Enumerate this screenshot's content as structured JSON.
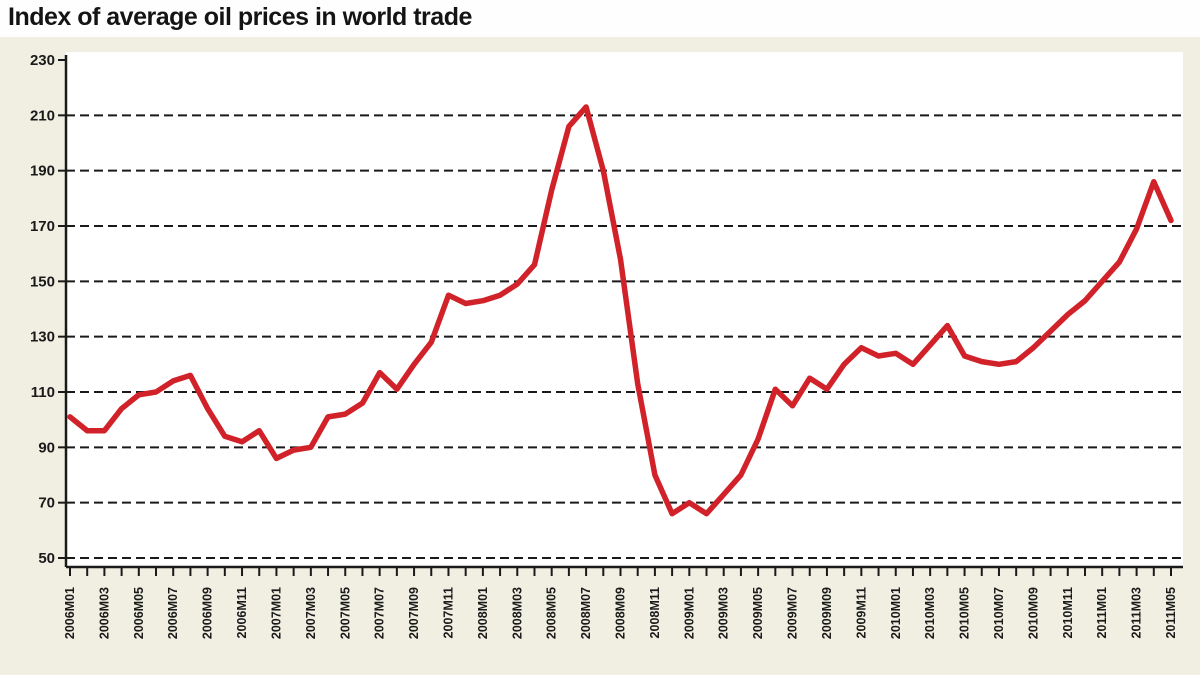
{
  "header": {
    "title": "Index of average oil prices in world trade"
  },
  "colors": {
    "background": "#f0efe2",
    "header_background": "#fefefe",
    "plot_background": "#ffffff",
    "line": "#d1222a",
    "axis": "#1a1a1a",
    "text": "#1a1a1a"
  },
  "chart_data": {
    "type": "line",
    "title": "Index of average oil prices in world trade",
    "legend": "none",
    "grid": "horizontal-dashed",
    "ylim": [
      50,
      230
    ],
    "y_ticks": [
      50,
      70,
      90,
      110,
      130,
      150,
      170,
      190,
      210,
      230
    ],
    "x_tick_labels": [
      "2006M01",
      "2006M03",
      "2006M05",
      "2006M07",
      "2006M09",
      "2006M11",
      "2007M01",
      "2007M03",
      "2007M05",
      "2007M07",
      "2007M09",
      "2007M11",
      "2008M01",
      "2008M03",
      "2008M05",
      "2008M07",
      "2008M09",
      "2008M11",
      "2009M01",
      "2009M03",
      "2009M05",
      "2009M07",
      "2009M09",
      "2009M11",
      "2010M01",
      "2010M03",
      "2010M05",
      "2010M07",
      "2010M09",
      "2010M11",
      "2011M01",
      "2011M03",
      "2011M05"
    ],
    "x": [
      "2006M01",
      "2006M02",
      "2006M03",
      "2006M04",
      "2006M05",
      "2006M06",
      "2006M07",
      "2006M08",
      "2006M09",
      "2006M10",
      "2006M11",
      "2006M12",
      "2007M01",
      "2007M02",
      "2007M03",
      "2007M04",
      "2007M05",
      "2007M06",
      "2007M07",
      "2007M08",
      "2007M09",
      "2007M10",
      "2007M11",
      "2007M12",
      "2008M01",
      "2008M02",
      "2008M03",
      "2008M04",
      "2008M05",
      "2008M06",
      "2008M07",
      "2008M08",
      "2008M09",
      "2008M10",
      "2008M11",
      "2008M12",
      "2009M01",
      "2009M02",
      "2009M03",
      "2009M04",
      "2009M05",
      "2009M06",
      "2009M07",
      "2009M08",
      "2009M09",
      "2009M10",
      "2009M11",
      "2009M12",
      "2010M01",
      "2010M02",
      "2010M03",
      "2010M04",
      "2010M05",
      "2010M06",
      "2010M07",
      "2010M08",
      "2010M09",
      "2010M10",
      "2010M11",
      "2010M12",
      "2011M01",
      "2011M02",
      "2011M03",
      "2011M04",
      "2011M05"
    ],
    "values": [
      101,
      96,
      96,
      104,
      109,
      110,
      114,
      116,
      104,
      94,
      92,
      96,
      86,
      89,
      90,
      101,
      102,
      106,
      117,
      111,
      120,
      128,
      145,
      142,
      143,
      145,
      149,
      156,
      183,
      206,
      213,
      190,
      158,
      113,
      80,
      66,
      70,
      66,
      73,
      80,
      93,
      111,
      105,
      115,
      111,
      120,
      126,
      123,
      124,
      120,
      127,
      134,
      123,
      121,
      120,
      121,
      126,
      132,
      138,
      143,
      150,
      157,
      169,
      186,
      172
    ],
    "line_color": "#d1222a"
  }
}
